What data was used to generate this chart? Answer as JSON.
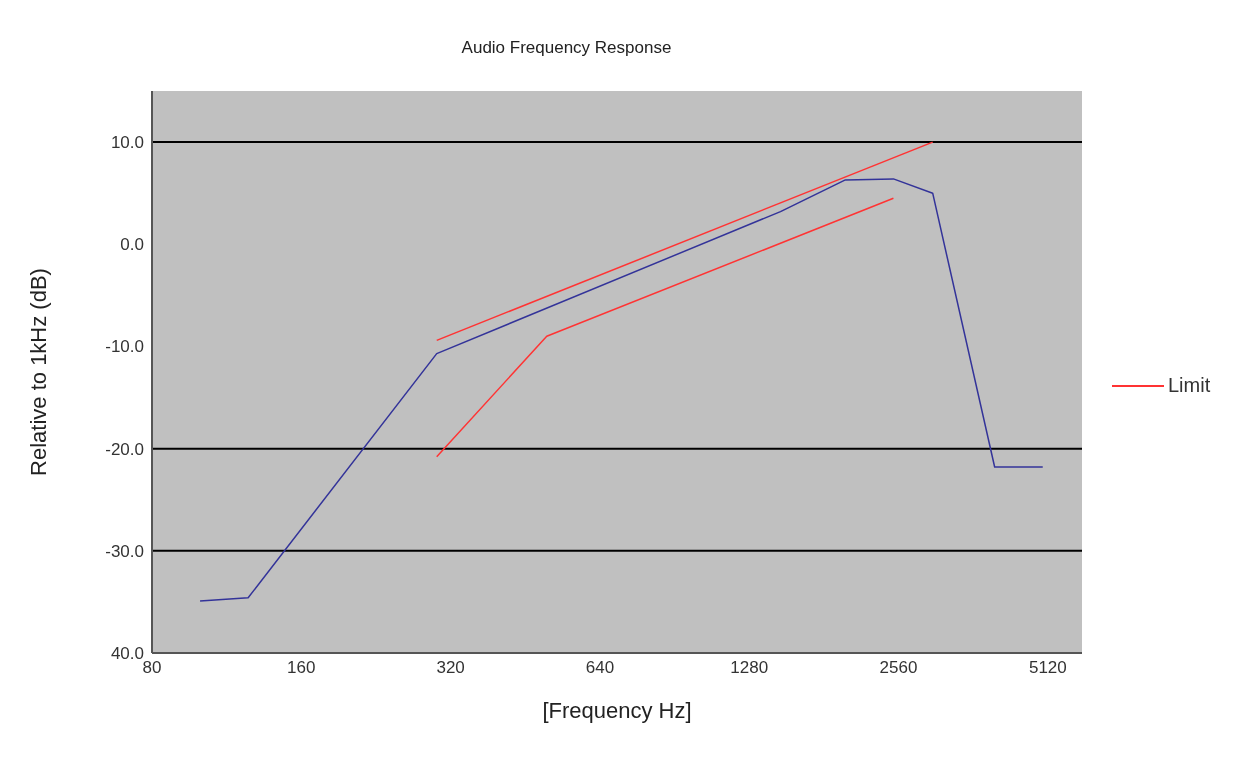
{
  "chart_data": {
    "type": "line",
    "title": "Audio Frequency Response",
    "xlabel": "[Frequency Hz]",
    "ylabel": "Relative to 1kHz (dB)",
    "log": "x",
    "xlim": [
      80,
      6000
    ],
    "xticks": [
      80,
      160,
      320,
      640,
      1280,
      2560,
      5120
    ],
    "ylim": [
      -40,
      15
    ],
    "yticks": [
      {
        "value": -40,
        "label": "40.0"
      },
      {
        "value": -30,
        "label": "-30.0"
      },
      {
        "value": -20,
        "label": "-20.0"
      },
      {
        "value": -10,
        "label": "-10.0"
      },
      {
        "value": 0,
        "label": "0.0"
      },
      {
        "value": 10,
        "label": "10.0"
      }
    ],
    "grid": false,
    "legend": "right",
    "marker": "none",
    "line_style": "solid",
    "ref_lines": [
      {
        "axis": "y",
        "value": 10,
        "color": "#000000"
      },
      {
        "axis": "y",
        "value": -20,
        "color": "#000000"
      },
      {
        "axis": "y",
        "value": -30,
        "color": "#000000"
      }
    ],
    "series": [
      {
        "color": "#333399",
        "x": [
          100,
          125,
          300,
          1480,
          2000,
          2500,
          3000,
          4000,
          5000
        ],
        "values": [
          -34.9,
          -34.6,
          -10.7,
          3.2,
          6.3,
          6.4,
          5.0,
          -21.8,
          -21.8
        ]
      },
      {
        "name": "Limit",
        "color": "#ff3333",
        "x": [
          300,
          500,
          2500
        ],
        "values": [
          -20.8,
          -9.0,
          4.5
        ]
      },
      {
        "color": "#ff3333",
        "x": [
          300,
          3000
        ],
        "values": [
          -9.4,
          10
        ]
      }
    ]
  }
}
